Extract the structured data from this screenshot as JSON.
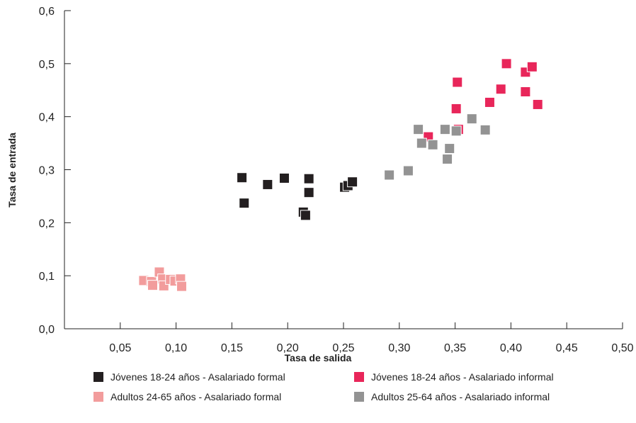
{
  "chart_data": {
    "type": "scatter",
    "xlabel": "Tasa de salida",
    "ylabel": "Tasa de entrada",
    "xlim": [
      0.0,
      0.5
    ],
    "ylim": [
      0.0,
      0.6
    ],
    "x_ticks": [
      "0,05",
      "0,10",
      "0,15",
      "0,20",
      "0,25",
      "0,30",
      "0,35",
      "0,40",
      "0,45",
      "0,50"
    ],
    "y_ticks": [
      "0,0",
      "0,1",
      "0,2",
      "0,3",
      "0,4",
      "0,5",
      "0,6"
    ],
    "grid": false,
    "legend_position": "bottom",
    "series": [
      {
        "name": "Jóvenes 18-24 años - Asalariado formal",
        "color": "#231f20",
        "points": [
          [
            0.159,
            0.285
          ],
          [
            0.161,
            0.237
          ],
          [
            0.182,
            0.272
          ],
          [
            0.197,
            0.284
          ],
          [
            0.214,
            0.22
          ],
          [
            0.216,
            0.214
          ],
          [
            0.219,
            0.283
          ],
          [
            0.219,
            0.257
          ],
          [
            0.251,
            0.267
          ],
          [
            0.254,
            0.27
          ],
          [
            0.258,
            0.277
          ]
        ]
      },
      {
        "name": "Jóvenes 18-24 años - Asalariado informal",
        "color": "#e8265a",
        "points": [
          [
            0.326,
            0.362
          ],
          [
            0.351,
            0.415
          ],
          [
            0.352,
            0.465
          ],
          [
            0.353,
            0.376
          ],
          [
            0.381,
            0.427
          ],
          [
            0.391,
            0.452
          ],
          [
            0.396,
            0.5
          ],
          [
            0.413,
            0.484
          ],
          [
            0.413,
            0.447
          ],
          [
            0.419,
            0.494
          ],
          [
            0.424,
            0.423
          ]
        ]
      },
      {
        "name": "Adultos 24-65 años - Asalariado formal",
        "color": "#f29c9c",
        "points": [
          [
            0.071,
            0.091
          ],
          [
            0.078,
            0.089
          ],
          [
            0.079,
            0.082
          ],
          [
            0.085,
            0.107
          ],
          [
            0.088,
            0.094
          ],
          [
            0.089,
            0.081
          ],
          [
            0.095,
            0.093
          ],
          [
            0.099,
            0.09
          ],
          [
            0.104,
            0.094
          ],
          [
            0.105,
            0.08
          ]
        ]
      },
      {
        "name": "Adultos 25-64 años - Asalariado informal",
        "color": "#939393",
        "points": [
          [
            0.291,
            0.29
          ],
          [
            0.308,
            0.298
          ],
          [
            0.317,
            0.376
          ],
          [
            0.32,
            0.35
          ],
          [
            0.33,
            0.347
          ],
          [
            0.341,
            0.376
          ],
          [
            0.343,
            0.32
          ],
          [
            0.345,
            0.34
          ],
          [
            0.351,
            0.373
          ],
          [
            0.365,
            0.396
          ],
          [
            0.377,
            0.375
          ]
        ]
      }
    ]
  }
}
